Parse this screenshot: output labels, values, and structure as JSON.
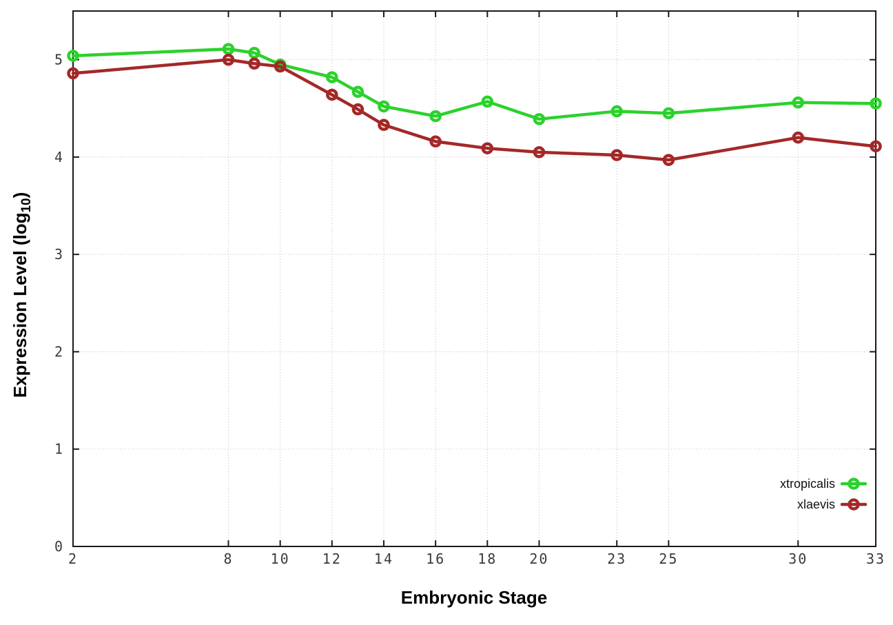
{
  "chart_data": {
    "type": "line",
    "title": "",
    "xlabel": "Embryonic Stage",
    "ylabel": "Expression Level (log10)",
    "ylabel_parts": {
      "main": "Expression Level (log",
      "sub": "10",
      "end": ")"
    },
    "x": [
      2,
      8,
      9,
      10,
      12,
      13,
      14,
      16,
      18,
      20,
      23,
      25,
      30,
      33
    ],
    "series": [
      {
        "name": "xtropicalis",
        "color": "#2bd22b",
        "values": [
          5.04,
          5.11,
          5.07,
          4.95,
          4.82,
          4.67,
          4.52,
          4.42,
          4.57,
          4.39,
          4.47,
          4.45,
          4.56,
          4.55
        ]
      },
      {
        "name": "xlaevis",
        "color": "#a42828",
        "values": [
          4.86,
          5.0,
          4.96,
          4.93,
          4.64,
          4.49,
          4.33,
          4.16,
          4.09,
          4.05,
          4.02,
          3.97,
          4.2,
          4.11
        ]
      }
    ],
    "xlim": [
      2,
      33
    ],
    "ylim": [
      0,
      5.5
    ],
    "xticks": [
      2,
      8,
      10,
      12,
      14,
      16,
      18,
      20,
      23,
      25,
      30,
      33
    ],
    "yticks": [
      0,
      1,
      2,
      3,
      4,
      5
    ],
    "grid": true,
    "legend_position": "inside-bottom-right",
    "marker": "open-circle",
    "background": "#ffffff",
    "border_color": "#1a1a1a",
    "grid_color": "#bdbdbd"
  }
}
